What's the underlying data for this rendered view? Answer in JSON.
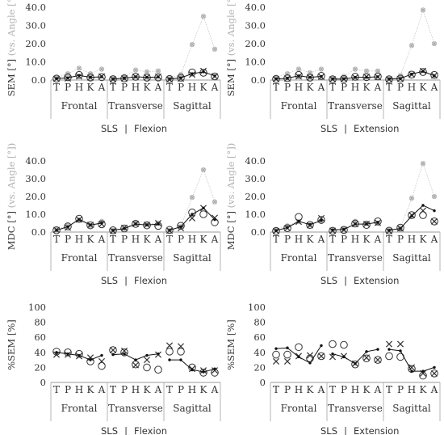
{
  "joint_labels": [
    "T",
    "P",
    "H",
    "K",
    "A"
  ],
  "plane_labels": [
    "Frontal",
    "Transverse",
    "Sagittal"
  ],
  "chart_data": [
    {
      "id": "sem-flexion",
      "type": "line",
      "row": 0,
      "col": 0,
      "ylabel": "SEM [°]",
      "ylabel2": " (vs. Angle [°])",
      "yticks": [
        "0.0",
        "10.0",
        "20.0",
        "30.0",
        "40.0"
      ],
      "ylim": [
        0,
        40
      ],
      "xlabel_left": "SLS",
      "xlabel_sep": "|",
      "xlabel_right": "Flexion",
      "line": [
        0.8,
        1.2,
        2.6,
        1.5,
        1.8,
        0.5,
        1.0,
        1.8,
        1.5,
        1.7,
        0.5,
        1.2,
        3.5,
        4.5,
        2.3
      ],
      "circles": [
        0.8,
        1.5,
        2.8,
        1.4,
        1.6,
        0.5,
        0.9,
        1.8,
        1.3,
        1.4,
        0.6,
        1.3,
        4.2,
        4.0,
        2.0
      ],
      "crosses": [
        0.6,
        0.9,
        2.0,
        1.4,
        2.0,
        0.4,
        0.9,
        1.8,
        1.6,
        1.9,
        0.3,
        0.8,
        3.0,
        5.0,
        2.0
      ],
      "angle": [
        1.5,
        3.5,
        6.5,
        3.5,
        6.0,
        1.0,
        2.0,
        5.5,
        4.5,
        5.0,
        1.0,
        3.0,
        19.5,
        35.0,
        17.0
      ]
    },
    {
      "id": "sem-extension",
      "type": "line",
      "row": 0,
      "col": 1,
      "ylabel": "SEM [°]",
      "ylabel2": " (vs. Angle [°])",
      "yticks": [
        "0.0",
        "10.0",
        "20.0",
        "30.0",
        "40.0"
      ],
      "ylim": [
        0,
        40
      ],
      "xlabel_left": "SLS",
      "xlabel_sep": "|",
      "xlabel_right": "Extension",
      "line": [
        0.6,
        1.0,
        2.3,
        1.5,
        2.0,
        0.6,
        0.6,
        1.5,
        1.5,
        1.8,
        0.6,
        0.8,
        3.3,
        4.8,
        2.3
      ],
      "circles": [
        0.6,
        1.0,
        2.8,
        1.3,
        2.3,
        0.4,
        0.6,
        1.8,
        1.6,
        2.0,
        0.4,
        0.8,
        3.0,
        4.4,
        2.8
      ],
      "crosses": [
        0.5,
        0.9,
        2.0,
        1.5,
        1.8,
        0.4,
        0.5,
        1.4,
        1.8,
        1.7,
        0.3,
        0.6,
        3.0,
        5.0,
        2.5
      ],
      "angle": [
        1.5,
        3.5,
        6.0,
        4.0,
        6.0,
        1.0,
        2.0,
        6.0,
        5.0,
        5.0,
        1.0,
        2.5,
        19.0,
        38.5,
        20.0
      ]
    },
    {
      "id": "mdc-flexion",
      "type": "line",
      "row": 1,
      "col": 0,
      "ylabel": "MDC [°]",
      "ylabel2": " (vs. Angle [°])",
      "yticks": [
        "0.0",
        "10.0",
        "20.0",
        "30.0",
        "40.0"
      ],
      "ylim": [
        0,
        40
      ],
      "xlabel_left": "SLS",
      "xlabel_sep": "|",
      "xlabel_right": "Flexion",
      "line": [
        1.0,
        3.0,
        7.2,
        4.0,
        5.0,
        1.0,
        2.0,
        4.5,
        4.0,
        4.5,
        1.0,
        3.0,
        10.0,
        13.5,
        7.0
      ],
      "circles": [
        1.0,
        3.2,
        7.5,
        3.8,
        4.4,
        1.0,
        2.0,
        4.6,
        3.8,
        3.5,
        1.2,
        3.5,
        11.0,
        10.0,
        5.5
      ],
      "crosses": [
        1.2,
        2.5,
        7.0,
        4.0,
        4.5,
        0.6,
        2.4,
        4.6,
        4.0,
        5.0,
        0.8,
        2.2,
        7.8,
        13.5,
        8.0
      ],
      "angle": [
        1.5,
        3.5,
        6.5,
        3.5,
        6.0,
        1.0,
        2.0,
        5.5,
        4.5,
        5.0,
        1.0,
        3.0,
        19.5,
        35.0,
        17.0
      ]
    },
    {
      "id": "mdc-extension",
      "type": "line",
      "row": 1,
      "col": 1,
      "ylabel": "MDC [°]",
      "ylabel2": " (vs. Angle [°])",
      "yticks": [
        "0.0",
        "10.0",
        "20.0",
        "30.0",
        "40.0"
      ],
      "ylim": [
        0,
        40
      ],
      "xlabel_left": "SLS",
      "xlabel_sep": "|",
      "xlabel_right": "Extension",
      "line": [
        0.8,
        2.5,
        6.0,
        4.2,
        6.5,
        1.2,
        1.5,
        4.5,
        4.5,
        5.5,
        1.0,
        2.0,
        9.0,
        15.0,
        12.0
      ],
      "circles": [
        0.6,
        2.2,
        8.5,
        4.0,
        6.8,
        0.7,
        1.2,
        4.8,
        4.0,
        6.0,
        0.8,
        2.5,
        9.5,
        9.5,
        6.0
      ],
      "crosses": [
        0.6,
        2.2,
        5.8,
        3.8,
        7.8,
        0.7,
        1.2,
        4.5,
        4.6,
        5.2,
        0.5,
        2.0,
        9.5,
        12.0,
        6.0
      ],
      "angle": [
        1.5,
        3.5,
        6.0,
        4.0,
        6.0,
        1.0,
        2.0,
        6.0,
        5.0,
        5.0,
        1.0,
        2.5,
        19.0,
        38.5,
        20.0
      ]
    },
    {
      "id": "pct-sem-flexion",
      "type": "line",
      "row": 2,
      "col": 0,
      "ylabel": "%SEM [%]",
      "ylabel2": "",
      "yticks": [
        "0",
        "20",
        "40",
        "60",
        "80",
        "100"
      ],
      "ylim": [
        0,
        100
      ],
      "xlabel_left": "SLS",
      "xlabel_sep": "|",
      "xlabel_right": "Flexion",
      "line": [
        40,
        38,
        36,
        30,
        36,
        37,
        38,
        30,
        36,
        38,
        30,
        30,
        17,
        14,
        18
      ],
      "circles": [
        41,
        40,
        38,
        28,
        22,
        43,
        40,
        24,
        20,
        17,
        41,
        41,
        20,
        13,
        13
      ],
      "crosses": [
        37,
        37,
        35,
        33,
        28,
        43,
        42,
        23,
        30,
        37,
        49,
        48,
        18,
        16,
        16
      ]
    },
    {
      "id": "pct-sem-extension",
      "type": "line",
      "row": 2,
      "col": 1,
      "ylabel": "%SEM [%]",
      "ylabel2": "",
      "yticks": [
        "0",
        "20",
        "40",
        "60",
        "80",
        "100"
      ],
      "ylim": [
        0,
        100
      ],
      "xlabel_left": "SLS",
      "xlabel_sep": "|",
      "xlabel_right": "Extension",
      "line": [
        45,
        46,
        34,
        26,
        49,
        38,
        34,
        25,
        41,
        44,
        44,
        42,
        15,
        15,
        20
      ],
      "circles": [
        37,
        37,
        47,
        32,
        35,
        51,
        50,
        24,
        32,
        30,
        35,
        34,
        18,
        9,
        12
      ],
      "crosses": [
        28,
        28,
        35,
        36,
        35,
        34,
        35,
        25,
        33,
        30,
        51,
        51,
        20,
        12,
        12
      ]
    }
  ]
}
